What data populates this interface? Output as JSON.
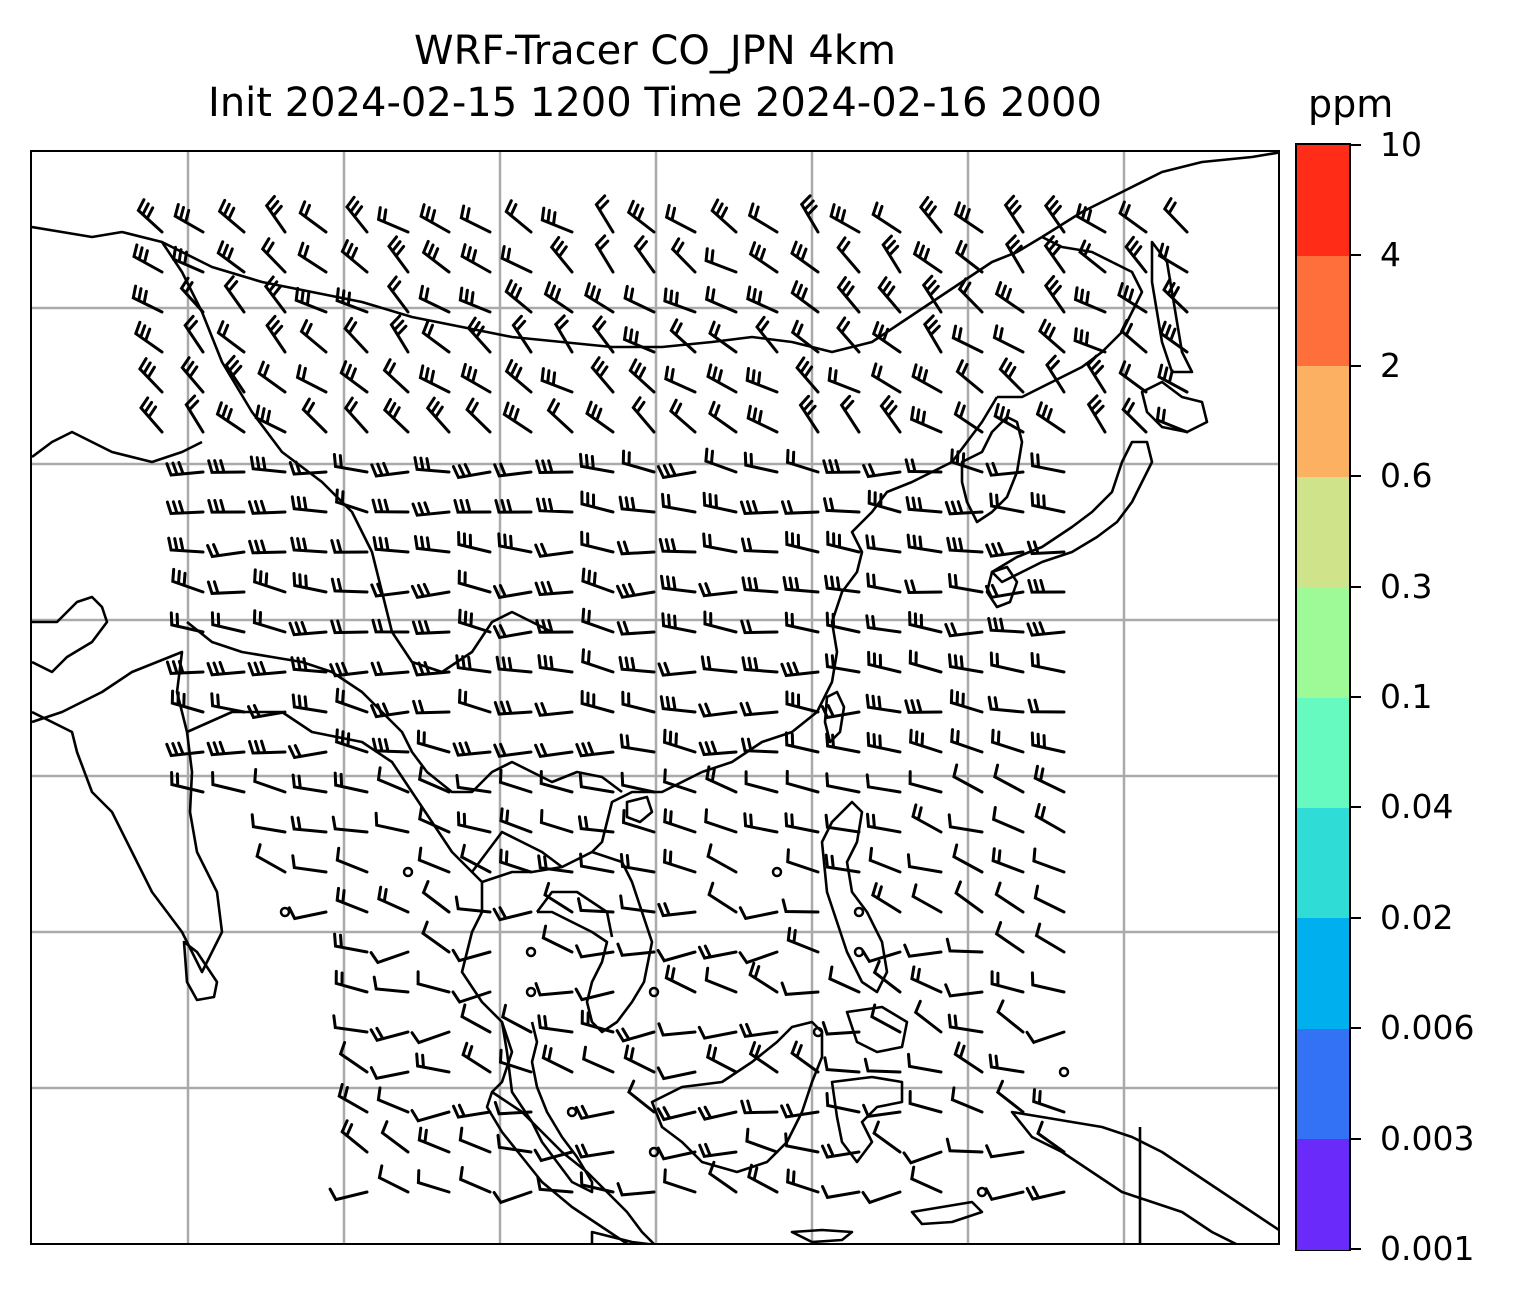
{
  "title": {
    "line1": "WRF-Tracer CO_JPN 4km",
    "line2": "Init 2024-02-15 1200 Time 2024-02-16 2000"
  },
  "colorbar": {
    "unit": "ppm",
    "levels": [
      "0.001",
      "0.003",
      "0.006",
      "0.02",
      "0.04",
      "0.1",
      "0.3",
      "0.6",
      "2",
      "4",
      "10"
    ],
    "colors": [
      "#6a2bfa",
      "#3472f5",
      "#00b0ee",
      "#2fdcd6",
      "#66fac1",
      "#9efa97",
      "#cfe38a",
      "#fcb062",
      "#ff6f3c",
      "#ff2d18"
    ]
  },
  "map": {
    "gridlines": "on",
    "gridline_color": "#aaaaaa",
    "coastline_color": "#000000",
    "overlay": "wind barbs"
  }
}
